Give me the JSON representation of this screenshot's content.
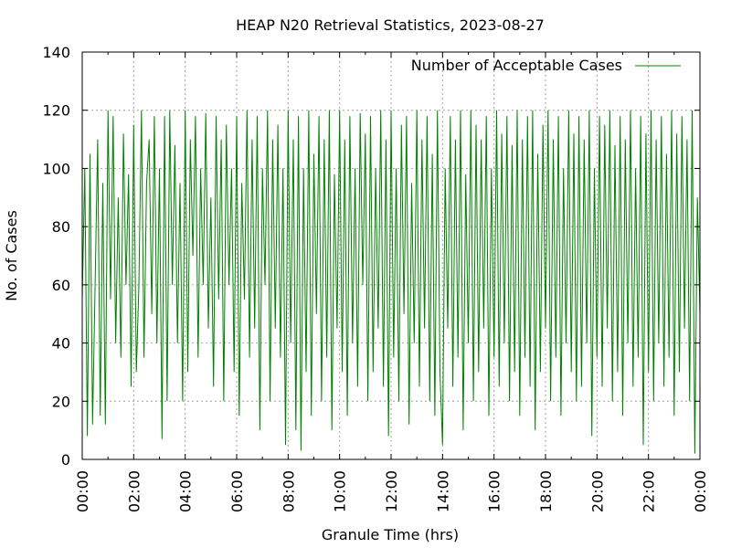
{
  "chart_data": {
    "type": "line",
    "title": "HEAP N20 Retrieval Statistics, 2023-08-27",
    "xlabel": "Granule Time (hrs)",
    "ylabel": "No. of Cases",
    "xlim": [
      "00:00",
      "24:00"
    ],
    "ylim": [
      0,
      140
    ],
    "x_ticks": [
      "00:00",
      "02:00",
      "04:00",
      "06:00",
      "08:00",
      "10:00",
      "12:00",
      "14:00",
      "16:00",
      "18:00",
      "20:00",
      "22:00",
      "00:00"
    ],
    "y_ticks": [
      "0",
      "20",
      "40",
      "60",
      "80",
      "100",
      "120",
      "140"
    ],
    "grid": true,
    "legend_position": "top-right",
    "series": [
      {
        "name": "Number of Acceptable Cases",
        "color": "#008000",
        "x_hours": [
          0.0,
          0.1,
          0.2,
          0.3,
          0.4,
          0.5,
          0.6,
          0.7,
          0.8,
          0.9,
          1.0,
          1.1,
          1.2,
          1.3,
          1.4,
          1.5,
          1.6,
          1.7,
          1.8,
          1.9,
          2.0,
          2.1,
          2.2,
          2.3,
          2.4,
          2.5,
          2.6,
          2.7,
          2.8,
          2.9,
          3.0,
          3.1,
          3.2,
          3.3,
          3.4,
          3.5,
          3.6,
          3.7,
          3.8,
          3.9,
          4.0,
          4.1,
          4.2,
          4.3,
          4.4,
          4.5,
          4.6,
          4.7,
          4.8,
          4.9,
          5.0,
          5.1,
          5.2,
          5.3,
          5.4,
          5.5,
          5.6,
          5.7,
          5.8,
          5.9,
          6.0,
          6.1,
          6.2,
          6.3,
          6.4,
          6.5,
          6.6,
          6.7,
          6.8,
          6.9,
          7.0,
          7.1,
          7.2,
          7.3,
          7.4,
          7.5,
          7.6,
          7.7,
          7.8,
          7.9,
          8.0,
          8.1,
          8.2,
          8.3,
          8.4,
          8.5,
          8.6,
          8.7,
          8.8,
          8.9,
          9.0,
          9.1,
          9.2,
          9.3,
          9.4,
          9.5,
          9.6,
          9.7,
          9.8,
          9.9,
          10.0,
          10.1,
          10.2,
          10.3,
          10.4,
          10.5,
          10.6,
          10.7,
          10.8,
          10.9,
          11.0,
          11.1,
          11.2,
          11.3,
          11.4,
          11.5,
          11.6,
          11.7,
          11.8,
          11.9,
          12.0,
          12.1,
          12.2,
          12.3,
          12.4,
          12.5,
          12.6,
          12.7,
          12.8,
          12.9,
          13.0,
          13.1,
          13.2,
          13.3,
          13.4,
          13.5,
          13.6,
          13.7,
          13.8,
          13.9,
          14.0,
          14.1,
          14.2,
          14.3,
          14.4,
          14.5,
          14.6,
          14.7,
          14.8,
          14.9,
          15.0,
          15.1,
          15.2,
          15.3,
          15.4,
          15.5,
          15.6,
          15.7,
          15.8,
          15.9,
          16.0,
          16.1,
          16.2,
          16.3,
          16.4,
          16.5,
          16.6,
          16.7,
          16.8,
          16.9,
          17.0,
          17.1,
          17.2,
          17.3,
          17.4,
          17.5,
          17.6,
          17.7,
          17.8,
          17.9,
          18.0,
          18.1,
          18.2,
          18.3,
          18.4,
          18.5,
          18.6,
          18.7,
          18.8,
          18.9,
          19.0,
          19.1,
          19.2,
          19.3,
          19.4,
          19.5,
          19.6,
          19.7,
          19.8,
          19.9,
          20.0,
          20.1,
          20.2,
          20.3,
          20.4,
          20.5,
          20.6,
          20.7,
          20.8,
          20.9,
          21.0,
          21.1,
          21.2,
          21.3,
          21.4,
          21.5,
          21.6,
          21.7,
          21.8,
          21.9,
          22.0,
          22.1,
          22.2,
          22.3,
          22.4,
          22.5,
          22.6,
          22.7,
          22.8,
          22.9,
          23.0,
          23.1,
          23.2,
          23.3,
          23.4,
          23.5,
          23.6,
          23.7,
          23.8,
          23.9,
          24.0
        ],
        "values": [
          55,
          100,
          8,
          105,
          12,
          60,
          110,
          15,
          95,
          12,
          120,
          55,
          118,
          40,
          90,
          35,
          112,
          60,
          98,
          25,
          115,
          30,
          60,
          120,
          35,
          95,
          110,
          50,
          118,
          40,
          100,
          7,
          118,
          20,
          120,
          60,
          108,
          40,
          95,
          20,
          120,
          30,
          110,
          70,
          118,
          35,
          100,
          60,
          119,
          45,
          90,
          25,
          118,
          55,
          110,
          20,
          115,
          60,
          100,
          30,
          118,
          15,
          95,
          55,
          120,
          35,
          110,
          45,
          118,
          10,
          100,
          60,
          120,
          20,
          110,
          45,
          115,
          35,
          100,
          5,
          120,
          40,
          110,
          10,
          118,
          3,
          100,
          30,
          120,
          15,
          105,
          50,
          118,
          20,
          110,
          35,
          120,
          10,
          98,
          45,
          120,
          30,
          110,
          15,
          118,
          40,
          100,
          25,
          119,
          60,
          112,
          20,
          118,
          30,
          100,
          45,
          120,
          25,
          110,
          8,
          120,
          35,
          100,
          20,
          115,
          50,
          118,
          12,
          95,
          40,
          120,
          25,
          110,
          45,
          118,
          20,
          105,
          15,
          120,
          30,
          5,
          100,
          45,
          118,
          25,
          110,
          35,
          120,
          10,
          98,
          40,
          120,
          20,
          115,
          30,
          110,
          45,
          118,
          15,
          100,
          35,
          120,
          25,
          112,
          40,
          118,
          20,
          108,
          30,
          120,
          15,
          110,
          35,
          118,
          25,
          120,
          10,
          105,
          30,
          115,
          45,
          120,
          20,
          110,
          35,
          118,
          15,
          100,
          40,
          120,
          30,
          112,
          20,
          118,
          25,
          110,
          40,
          120,
          8,
          100,
          35,
          118,
          25,
          115,
          45,
          120,
          20,
          108,
          30,
          118,
          15,
          110,
          40,
          120,
          25,
          100,
          35,
          118,
          5,
          112,
          30,
          120,
          20,
          110,
          40,
          118,
          25,
          105,
          35,
          120,
          15,
          112,
          30,
          118,
          45,
          110,
          20,
          120,
          2,
          90,
          50
        ]
      }
    ]
  }
}
